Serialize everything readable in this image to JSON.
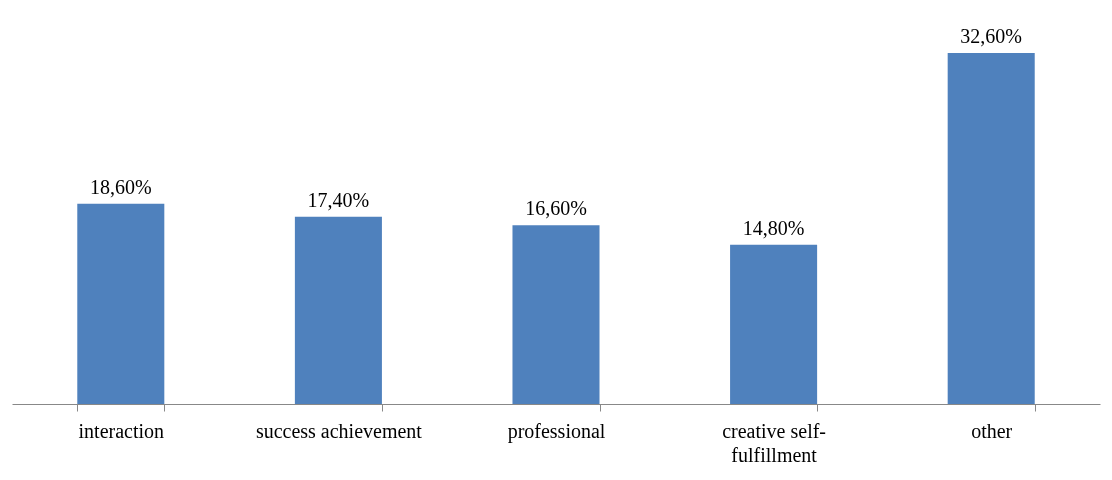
{
  "chart_data": {
    "type": "bar",
    "categories": [
      "interaction",
      "success achievement",
      "professional",
      "creative self-\nfulfillment",
      "other"
    ],
    "values": [
      18.6,
      17.4,
      16.6,
      14.8,
      32.6
    ],
    "value_labels": [
      "18,60%",
      "17,40%",
      "16,60%",
      "14,80%",
      "32,60%"
    ],
    "color": "#4f81bd",
    "tick_labels": "x"
  }
}
